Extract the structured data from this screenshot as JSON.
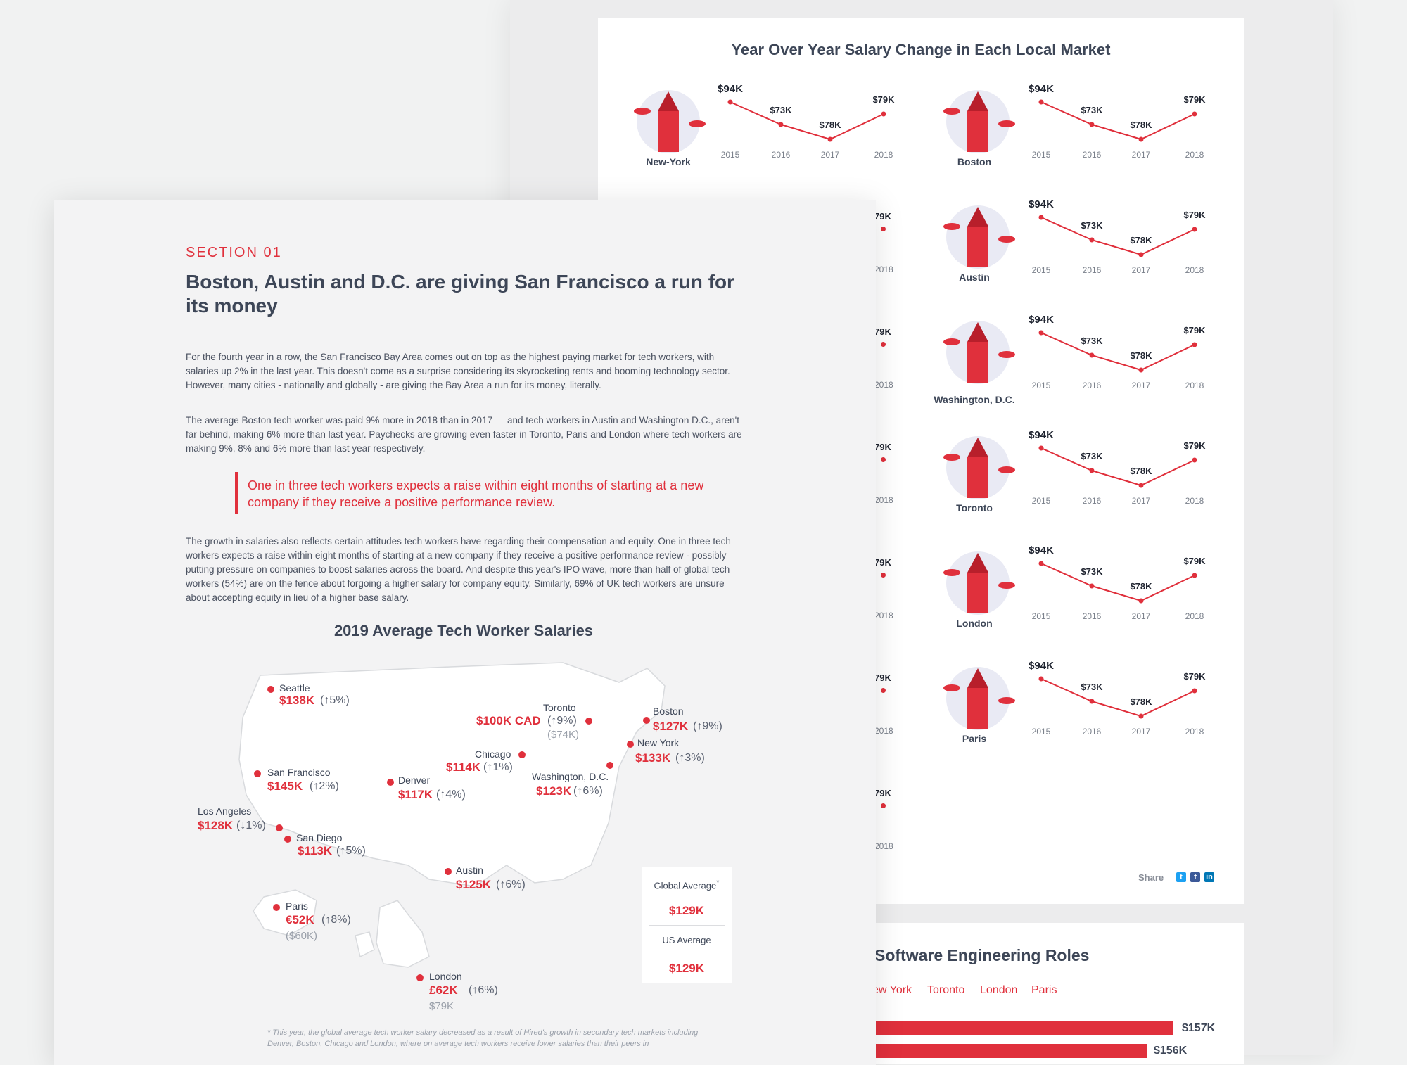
{
  "back_panel": {
    "title": "Year Over Year Salary Change in Each Local Market",
    "share_label": "Share",
    "roles_title": "Software Engineering Roles",
    "roles_tabs": [
      "ew York",
      "Toronto",
      "London",
      "Paris"
    ],
    "roles_values": [
      "$157K",
      "$156K"
    ]
  },
  "front_panel": {
    "section": "SECTION 01",
    "headline": "Boston, Austin and D.C. are giving San Francisco a run for its money",
    "para1": "For the fourth year in a row, the San Francisco Bay Area comes out on top as the highest paying market for tech workers, with salaries up 2% in the last year. This doesn't come as a surprise considering its skyrocketing rents and booming technology sector. However, many cities - nationally and globally - are giving the Bay Area a run for its money, literally.",
    "para2": "The average Boston tech worker was paid 9% more in 2018 than in 2017 — and tech workers in Austin and Washington D.C., aren't far behind, making 6% more than last year. Paychecks are growing even faster in Toronto, Paris and London where tech workers are making  9%, 8% and 6% more than last year respectively.",
    "quote": "One in three tech workers expects a raise within eight months of starting at a new company if they receive a positive performance review.",
    "para3": "The growth in salaries also reflects certain attitudes tech workers have regarding their compensation and equity. One in three tech workers expects a raise within eight months of starting at a new company if they receive a positive performance review - possibly putting pressure on companies to boost salaries across the board. And despite this year's IPO wave, more than half of global tech workers (54%) are on the fence about forgoing a higher salary for company equity. Similarly, 69% of UK tech workers are unsure about accepting equity in lieu of a higher base salary.",
    "map_title": "2019 Average Tech Worker Salaries",
    "global_avg_label": "Global Average",
    "global_avg_mark": "*",
    "global_avg_value": "$129K",
    "us_avg_label": "US Average",
    "us_avg_value": "$129K",
    "footnote": "This year, the global average tech worker salary decreased as a result of Hired's growth in secondary tech markets including Denver, Boston, Chicago and London, where on average tech workers receive lower salaries than their peers in",
    "footnote_mark": "*"
  },
  "map_cities": [
    {
      "name": "Seattle",
      "salary": "$138K",
      "change": "(↑5%)"
    },
    {
      "name": "Toronto",
      "salary": "$100K CAD",
      "change": "(↑9%)",
      "sub": "($74K)"
    },
    {
      "name": "Boston",
      "salary": "$127K",
      "change": "(↑9%)"
    },
    {
      "name": "New York",
      "salary": "$133K",
      "change": "(↑3%)"
    },
    {
      "name": "Chicago",
      "salary": "$114K",
      "change": "(↑1%)"
    },
    {
      "name": "Washington, D.C.",
      "salary": "$123K",
      "change": "(↑6%)"
    },
    {
      "name": "San Francisco",
      "salary": "$145K",
      "change": "(↑2%)"
    },
    {
      "name": "Denver",
      "salary": "$117K",
      "change": "(↑4%)"
    },
    {
      "name": "Los Angeles",
      "salary": "$128K",
      "change": "(↓1%)"
    },
    {
      "name": "San Diego",
      "salary": "$113K",
      "change": "(↑5%)"
    },
    {
      "name": "Austin",
      "salary": "$125K",
      "change": "(↑6%)"
    },
    {
      "name": "Paris",
      "salary": "€52K",
      "change": "(↑8%)",
      "sub": "($60K)"
    },
    {
      "name": "London",
      "salary": "£62K",
      "change": "(↑6%)",
      "sub": "$79K"
    }
  ],
  "chart_data": {
    "type": "line",
    "title": "Year Over Year Salary Change in Each Local Market",
    "x": [
      "2015",
      "2016",
      "2017",
      "2018"
    ],
    "series": [
      {
        "name": "New-York",
        "values": [
          94,
          73,
          78,
          79
        ],
        "labels": [
          "$94K",
          "$73K",
          "$78K",
          "$79K"
        ]
      },
      {
        "name": "Boston",
        "values": [
          94,
          73,
          78,
          79
        ],
        "labels": [
          "$94K",
          "$73K",
          "$78K",
          "$79K"
        ]
      },
      {
        "name": "Austin",
        "values": [
          94,
          73,
          78,
          79
        ],
        "labels": [
          "$94K",
          "$73K",
          "$78K",
          "$79K"
        ]
      },
      {
        "name": "Washington, D.C.",
        "values": [
          94,
          73,
          78,
          79
        ],
        "labels": [
          "$94K",
          "$73K",
          "$78K",
          "$79K"
        ]
      },
      {
        "name": "Toronto",
        "values": [
          94,
          73,
          78,
          79
        ],
        "labels": [
          "$94K",
          "$73K",
          "$78K",
          "$79K"
        ]
      },
      {
        "name": "London",
        "values": [
          94,
          73,
          78,
          79
        ],
        "labels": [
          "$94K",
          "$73K",
          "$78K",
          "$79K"
        ]
      },
      {
        "name": "Paris",
        "values": [
          94,
          73,
          78,
          79
        ],
        "labels": [
          "$94K",
          "$73K",
          "$78K",
          "$79K"
        ]
      }
    ],
    "partial_left_column": {
      "label": "79K",
      "year": "2018"
    }
  },
  "colors": {
    "accent": "#e0303c",
    "text": "#3d4657",
    "muted": "#8a8f99"
  }
}
